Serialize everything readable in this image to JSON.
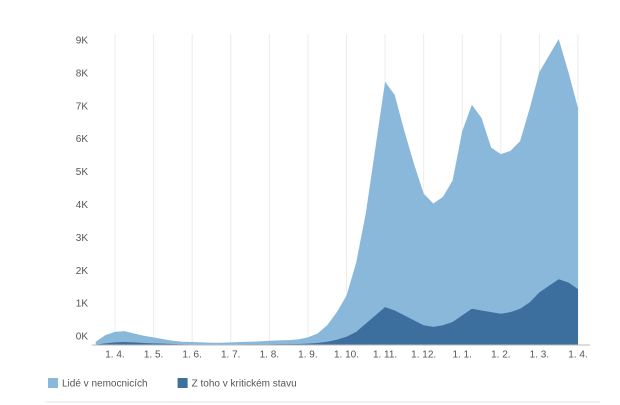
{
  "chart_data": {
    "type": "area",
    "categories": [
      null,
      null,
      "1. 4.",
      null,
      null,
      null,
      "1. 5.",
      null,
      null,
      null,
      "1. 6.",
      null,
      null,
      null,
      "1. 7.",
      null,
      null,
      null,
      "1. 8.",
      null,
      null,
      null,
      "1. 9.",
      null,
      null,
      null,
      "1. 10.",
      null,
      null,
      null,
      "1. 11.",
      null,
      null,
      null,
      "1. 12.",
      null,
      null,
      null,
      "1. 1.",
      null,
      null,
      null,
      "1. 2.",
      null,
      null,
      null,
      "1. 3.",
      null,
      null,
      null,
      "1. 4."
    ],
    "series": [
      {
        "name": "Lidé v nemocnicích",
        "color": "#8ab8db",
        "values": [
          100,
          300,
          400,
          420,
          350,
          280,
          230,
          180,
          130,
          100,
          90,
          80,
          70,
          70,
          80,
          90,
          100,
          110,
          130,
          140,
          150,
          170,
          230,
          350,
          600,
          1000,
          1500,
          2500,
          4000,
          6000,
          8000,
          7600,
          6500,
          5500,
          4600,
          4300,
          4500,
          5000,
          6500,
          7300,
          6900,
          6000,
          5800,
          5900,
          6200,
          7200,
          8300,
          8800,
          9300,
          8300,
          7200
        ]
      },
      {
        "name": "Z toho v kritickém stavu",
        "color": "#3d6f9e",
        "values": [
          10,
          50,
          80,
          90,
          80,
          60,
          50,
          40,
          30,
          20,
          15,
          15,
          12,
          12,
          12,
          15,
          18,
          20,
          20,
          25,
          25,
          30,
          40,
          60,
          100,
          160,
          250,
          400,
          650,
          900,
          1150,
          1050,
          900,
          750,
          600,
          550,
          600,
          700,
          900,
          1100,
          1050,
          1000,
          950,
          1000,
          1100,
          1300,
          1600,
          1800,
          2000,
          1900,
          1700
        ]
      }
    ],
    "ylim": [
      0,
      9300
    ],
    "yticks": [
      {
        "value": 0,
        "label": "0K"
      },
      {
        "value": 1000,
        "label": "1K"
      },
      {
        "value": 2000,
        "label": "2K"
      },
      {
        "value": 3000,
        "label": "3K"
      },
      {
        "value": 4000,
        "label": "4K"
      },
      {
        "value": 5000,
        "label": "5K"
      },
      {
        "value": 6000,
        "label": "6K"
      },
      {
        "value": 7000,
        "label": "7K"
      },
      {
        "value": 8000,
        "label": "8K"
      },
      {
        "value": 9000,
        "label": "9K"
      }
    ],
    "grid": true
  }
}
